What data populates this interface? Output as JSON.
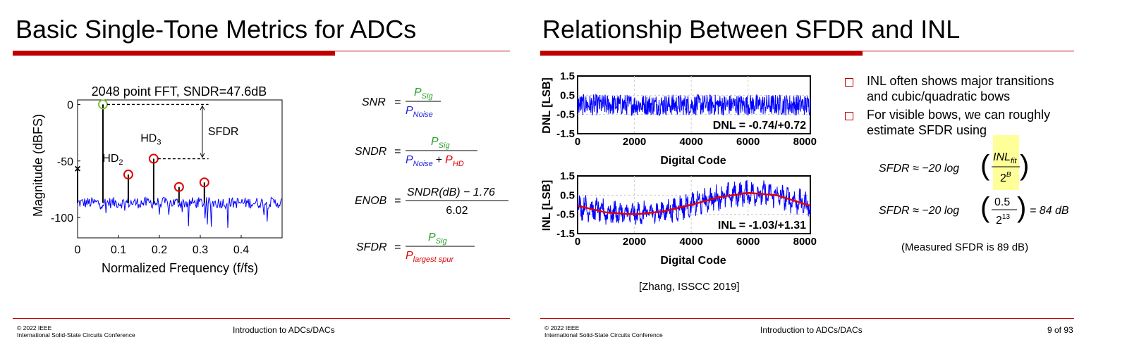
{
  "left_slide": {
    "title": "Basic Single-Tone Metrics for ADCs",
    "chart_data": {
      "type": "line",
      "title": "2048 point FFT, SNDR=47.6dB",
      "xlabel": "Normalized Frequency (f/fs)",
      "ylabel": "Magnitude (dBFS)",
      "xlim": [
        0,
        0.5
      ],
      "ylim": [
        -118,
        4
      ],
      "x_ticks": [
        "0",
        "0.1",
        "0.2",
        "0.3",
        "0.4"
      ],
      "y_ticks": [
        "0",
        "-50",
        "-100"
      ],
      "noise_floor_db": -87,
      "signal": {
        "x": 0.062,
        "y": 0
      },
      "harmonics": [
        {
          "x": 0.124,
          "y": -62
        },
        {
          "x": 0.186,
          "y": -48
        },
        {
          "x": 0.248,
          "y": -73
        },
        {
          "x": 0.31,
          "y": -69
        }
      ],
      "dc_marker": {
        "x": 0.0,
        "y": -57
      },
      "annotations": {
        "hd2": {
          "base": "HD",
          "sub": "2"
        },
        "hd3": {
          "base": "HD",
          "sub": "3"
        },
        "sfdr": "SFDR"
      }
    },
    "equations": {
      "snr": {
        "lhs": "SNR",
        "num": "P",
        "num_sub": "Sig",
        "den": "P",
        "den_sub": "Noise"
      },
      "sndr": {
        "lhs": "SNDR",
        "num": "P",
        "num_sub": "Sig",
        "den1": "P",
        "den1_sub": "Noise",
        "plus": "+",
        "den2": "P",
        "den2_sub": "HD"
      },
      "enob": {
        "lhs": "ENOB",
        "num": "SNDR(dB) − 1.76",
        "den": "6.02"
      },
      "sfdr": {
        "lhs": "SFDR",
        "num": "P",
        "num_sub": "Sig",
        "den": "P",
        "den_sub": "largest spur"
      }
    },
    "footer": {
      "copyright_line1": "© 2022 IEEE",
      "copyright_line2": "International Solid-State Circuits Conference",
      "center": "Introduction to ADCs/DACs"
    },
    "colors": {
      "accent": "#c00000",
      "signal_green": "#2ca02c",
      "equation_blue": "#1f1fe0",
      "equation_red": "#e00000"
    }
  },
  "right_slide": {
    "title": "Relationship Between SFDR and INL",
    "chart_data": [
      {
        "type": "line",
        "ylabel": "DNL [LSB]",
        "xlabel": "Digital Code",
        "xlim": [
          0,
          8191
        ],
        "ylim": [
          -1.5,
          1.5
        ],
        "x_ticks": [
          "0",
          "2000",
          "4000",
          "6000",
          "8000"
        ],
        "y_ticks": [
          "1.5",
          "0.5",
          "-0.5",
          "-1.5"
        ],
        "annotation": "DNL = -0.74/+0.72",
        "range": [
          -0.74,
          0.72
        ]
      },
      {
        "type": "line",
        "ylabel": "INL [LSB]",
        "xlabel": "Digital Code",
        "xlim": [
          0,
          8191
        ],
        "ylim": [
          -1.5,
          1.5
        ],
        "x_ticks": [
          "0",
          "2000",
          "4000",
          "6000",
          "8000"
        ],
        "y_ticks": [
          "1.5",
          "0.5",
          "-0.5",
          "-1.5"
        ],
        "annotation": "INL = -1.03/+1.31",
        "range": [
          -1.03,
          1.31
        ],
        "fit_points": {
          "x": [
            0,
            1000,
            2000,
            3000,
            4000,
            5000,
            6000,
            7000,
            8191
          ],
          "y": [
            -0.05,
            -0.4,
            -0.5,
            -0.35,
            0.0,
            0.4,
            0.62,
            0.5,
            -0.05
          ]
        }
      }
    ],
    "caption": "[Zhang, ISSCC 2019]",
    "bullets": [
      {
        "line1": "INL often shows major transitions",
        "line2": "and cubic/quadratic bows"
      },
      {
        "line1": "For visible bows, we can roughly",
        "line2": "estimate SFDR using"
      }
    ],
    "formula1": {
      "lhs": "SFDR ≈ −20 log",
      "num": "INL",
      "num_sub": "fit",
      "den": "2",
      "den_sup": "B"
    },
    "formula2": {
      "lhs": "SFDR ≈ −20 log",
      "num": "0.5",
      "den": "2",
      "den_sup": "13",
      "rhs": "= 84 dB"
    },
    "measured_note": "(Measured SFDR is 89 dB)",
    "footer": {
      "copyright_line1": "© 2022 IEEE",
      "copyright_line2": "International Solid-State Circuits Conference",
      "center": "Introduction to ADCs/DACs",
      "page": "9 of 93"
    },
    "colors": {
      "accent": "#c00000",
      "trace_blue": "#0000ff",
      "fit_red": "#e00000",
      "highlight": "#ffff99"
    }
  }
}
